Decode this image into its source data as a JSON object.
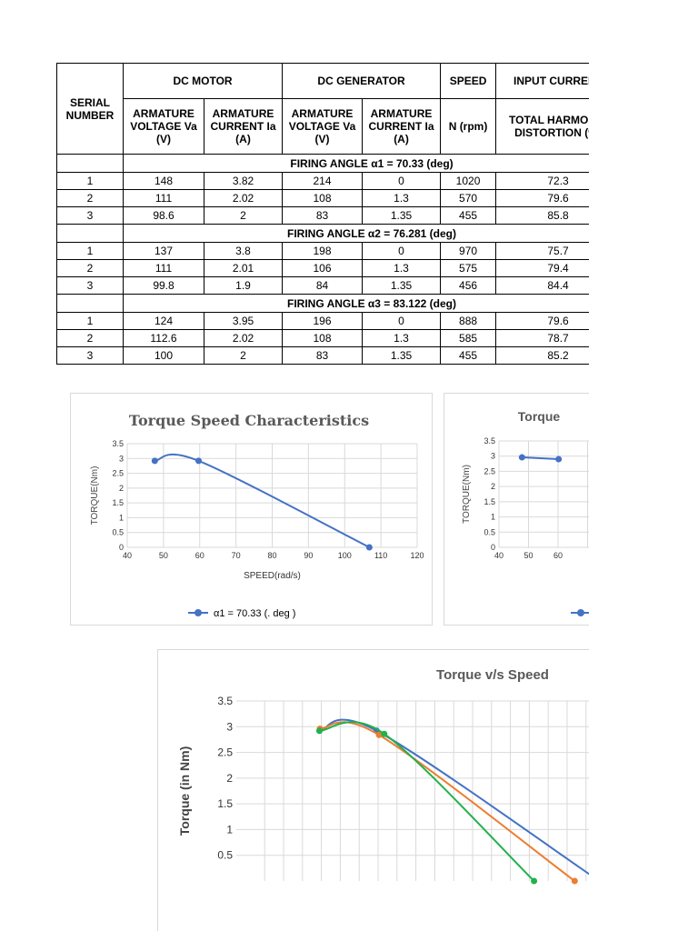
{
  "table": {
    "header": {
      "serial": "SERIAL NUMBER",
      "dc_motor": "DC MOTOR",
      "dc_generator": "DC GENERATOR",
      "speed": "SPEED",
      "input_current": "INPUT CURRENT",
      "motor_voltage": "ARMATURE VOLTAGE Va (V)",
      "motor_current": "ARMATURE CURRENT Ia (A)",
      "gen_voltage": "ARMATURE VOLTAGE Va (V)",
      "gen_current": "ARMATURE CURRENT Ia (A)",
      "speed_unit": "N (rpm)",
      "thd": "TOTAL HARMONIC DISTORTION (%)"
    },
    "groups": [
      {
        "angle_label": "FIRING ANGLE α1 = 70.33 (deg)",
        "rows": [
          [
            "1",
            "148",
            "3.82",
            "214",
            "0",
            "1020",
            "72.3"
          ],
          [
            "2",
            "111",
            "2.02",
            "108",
            "1.3",
            "570",
            "79.6"
          ],
          [
            "3",
            "98.6",
            "2",
            "83",
            "1.35",
            "455",
            "85.8"
          ]
        ]
      },
      {
        "angle_label": "FIRING ANGLE α2 = 76.281 (deg)",
        "rows": [
          [
            "1",
            "137",
            "3.8",
            "198",
            "0",
            "970",
            "75.7"
          ],
          [
            "2",
            "111",
            "2.01",
            "106",
            "1.3",
            "575",
            "79.4"
          ],
          [
            "3",
            "99.8",
            "1.9",
            "84",
            "1.35",
            "456",
            "84.4"
          ]
        ]
      },
      {
        "angle_label": "FIRING ANGLE α3 = 83.122 (deg)",
        "rows": [
          [
            "1",
            "124",
            "3.95",
            "196",
            "0",
            "888",
            "79.6"
          ],
          [
            "2",
            "112.6",
            "2.02",
            "108",
            "1.3",
            "585",
            "78.7"
          ],
          [
            "3",
            "100",
            "2",
            "83",
            "1.35",
            "455",
            "85.2"
          ]
        ]
      }
    ]
  },
  "colors": {
    "blue": "#4472c4",
    "orange": "#ed7d31",
    "green": "#22b14c",
    "grid": "#d9d9d9"
  },
  "chart_data": [
    {
      "type": "line",
      "title": "Torque Speed Characteristics",
      "xlabel": "SPEED(rad/s)",
      "ylabel": "TORQUE(Nm)",
      "xlim": [
        40,
        120
      ],
      "ylim": [
        0,
        3.5
      ],
      "x_ticks": [
        "40",
        "50",
        "60",
        "70",
        "80",
        "90",
        "100",
        "110",
        "120"
      ],
      "y_ticks": [
        "0",
        "0.5",
        "1",
        "1.5",
        "2",
        "2.5",
        "3",
        "3.5"
      ],
      "grid": true,
      "legend": "bottom",
      "series": [
        {
          "name": "α1 = 70.33 (. deg )",
          "x": [
            47.6,
            59.7,
            106.8
          ],
          "y": [
            2.92,
            2.92,
            0
          ]
        }
      ]
    },
    {
      "type": "line",
      "title": "Torque",
      "ylabel": "TORQUE(Nm)",
      "xlim": [
        40,
        120
      ],
      "ylim": [
        0,
        3.5
      ],
      "x_ticks": [
        "40",
        "50",
        "60"
      ],
      "y_ticks": [
        "0",
        "0.5",
        "1",
        "1.5",
        "2",
        "2.5",
        "3",
        "3.5"
      ],
      "grid": true,
      "legend": "bottom",
      "series": [
        {
          "x": [
            47.8,
            60.2
          ],
          "y": [
            2.96,
            2.9
          ]
        }
      ]
    },
    {
      "type": "line",
      "title": "Torque v/s Speed",
      "ylabel": "Torque (in Nm)",
      "ylim": [
        0,
        3.5
      ],
      "y_ticks": [
        "0.5",
        "1",
        "1.5",
        "2",
        "2.5",
        "3",
        "3.5"
      ],
      "grid": true,
      "series": [
        {
          "x": [
            47.6,
            59.7,
            106.8
          ],
          "y": [
            2.92,
            2.92,
            0
          ]
        },
        {
          "x": [
            47.7,
            60.2,
            101.6
          ],
          "y": [
            2.96,
            2.84,
            0
          ]
        },
        {
          "x": [
            47.6,
            61.3,
            93.0
          ],
          "y": [
            2.92,
            2.86,
            0
          ]
        }
      ]
    }
  ]
}
